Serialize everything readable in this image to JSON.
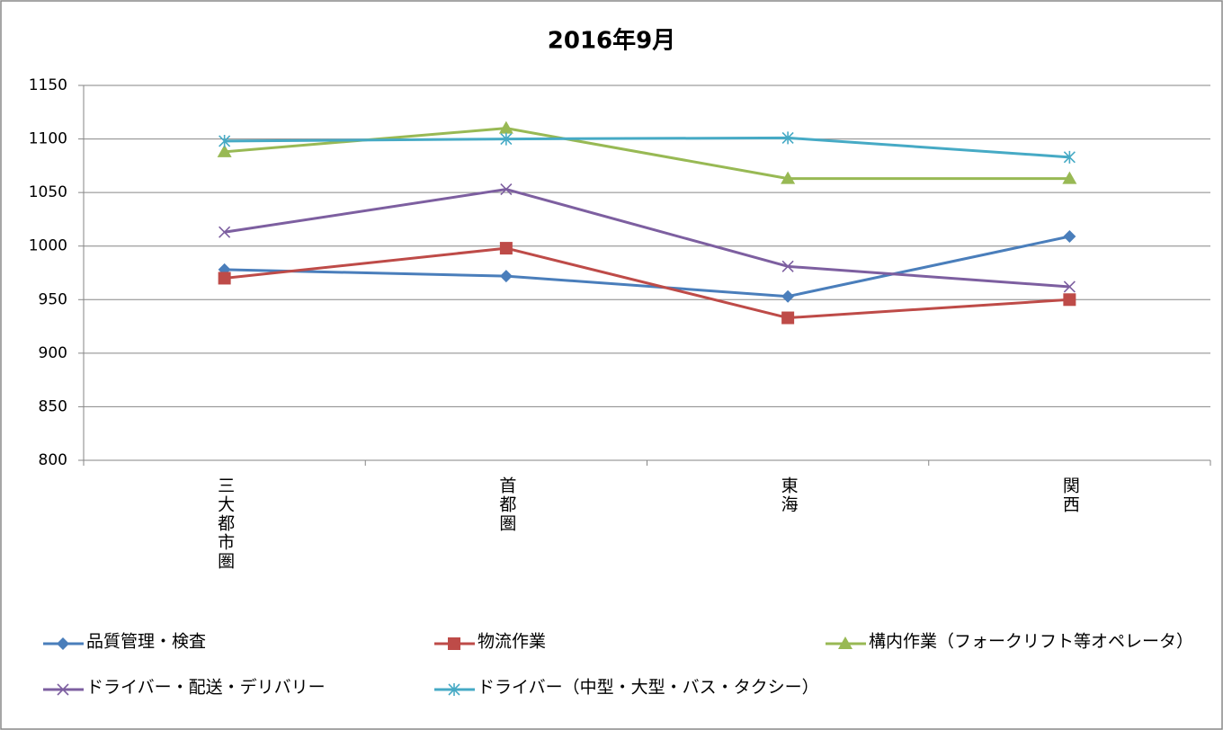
{
  "chart_data": {
    "type": "line",
    "title": "2016年9月",
    "categories": [
      "三大都市圏",
      "首都圏",
      "東海",
      "関西"
    ],
    "ylim": [
      800,
      1150
    ],
    "yticks": [
      800,
      850,
      900,
      950,
      1000,
      1050,
      1100,
      1150
    ],
    "grid": true,
    "series": [
      {
        "name": "品質管理・検査",
        "color": "#4a7ebb",
        "marker": "diamond",
        "values": [
          978,
          972,
          953,
          1009
        ]
      },
      {
        "name": "物流作業",
        "color": "#be4b48",
        "marker": "square",
        "values": [
          970,
          998,
          933,
          950
        ]
      },
      {
        "name": "構内作業（フォークリフト等オペレータ）",
        "color": "#98b954",
        "marker": "triangle",
        "values": [
          1088,
          1110,
          1063,
          1063
        ]
      },
      {
        "name": "ドライバー・配送・デリバリー",
        "color": "#7d5fa0",
        "marker": "x",
        "values": [
          1013,
          1053,
          981,
          962
        ]
      },
      {
        "name": "ドライバー（中型・大型・バス・タクシー）",
        "color": "#46aac5",
        "marker": "star",
        "values": [
          1098,
          1100,
          1101,
          1083
        ]
      }
    ]
  }
}
